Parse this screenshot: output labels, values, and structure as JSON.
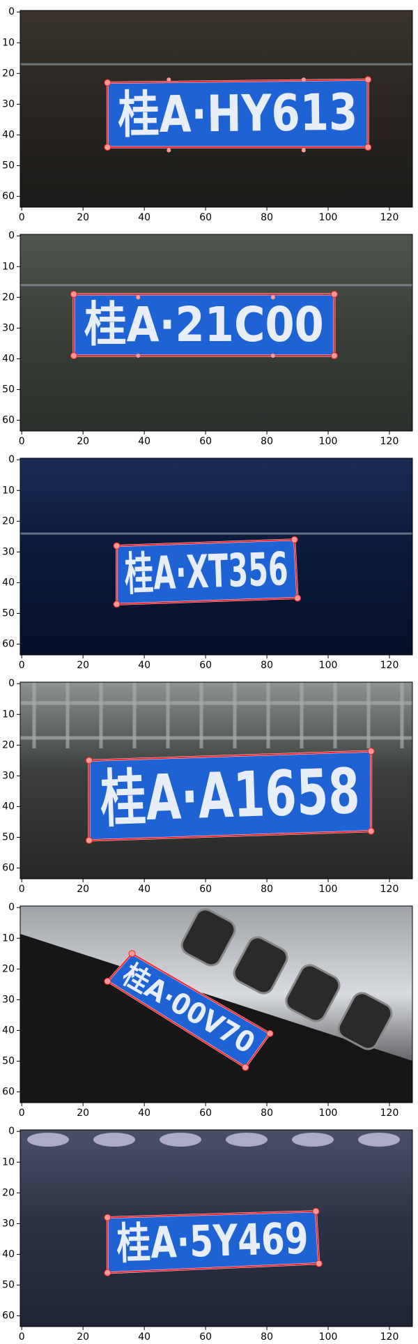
{
  "figure": {
    "x_ticks": [
      "0",
      "20",
      "40",
      "60",
      "80",
      "100",
      "120"
    ],
    "y_ticks": [
      "0",
      "10",
      "20",
      "30",
      "40",
      "50",
      "60"
    ],
    "colors": {
      "plate_blue": "#1f62d4",
      "annotation_red": "#ff2020",
      "corner_marker": "#ff9a9a",
      "axis": "#000000"
    },
    "panels": [
      {
        "plate_text": "桂A·HY613",
        "scene": "dark-road",
        "corners": [
          [
            28,
            23
          ],
          [
            113,
            22
          ],
          [
            113,
            44
          ],
          [
            28,
            44
          ]
        ],
        "mid_markers": [
          [
            48,
            22
          ],
          [
            92,
            22
          ],
          [
            48,
            45
          ],
          [
            92,
            45
          ]
        ]
      },
      {
        "plate_text": "桂A·21C00",
        "scene": "dark-bumper",
        "corners": [
          [
            17,
            19
          ],
          [
            102,
            19
          ],
          [
            102,
            39
          ],
          [
            17,
            39
          ]
        ],
        "mid_markers": [
          [
            38,
            20
          ],
          [
            82,
            20
          ],
          [
            38,
            39
          ],
          [
            82,
            39
          ]
        ]
      },
      {
        "plate_text": "桂A·XT356",
        "scene": "navy-car",
        "corners": [
          [
            31,
            28
          ],
          [
            89,
            26
          ],
          [
            90,
            45
          ],
          [
            31,
            47
          ]
        ],
        "mid_markers": []
      },
      {
        "plate_text": "桂A·A1658",
        "scene": "grille",
        "corners": [
          [
            22,
            25
          ],
          [
            114,
            22
          ],
          [
            114,
            48
          ],
          [
            22,
            51
          ]
        ],
        "mid_markers": []
      },
      {
        "plate_text": "桂A·00V70",
        "scene": "angled-jeep",
        "corners": [
          [
            36,
            15
          ],
          [
            81,
            41
          ],
          [
            73,
            52
          ],
          [
            28,
            24
          ]
        ],
        "mid_markers": []
      },
      {
        "plate_text": "桂A·5Y469",
        "scene": "blurry",
        "corners": [
          [
            28,
            28
          ],
          [
            96,
            26
          ],
          [
            97,
            43
          ],
          [
            28,
            46
          ]
        ],
        "mid_markers": []
      }
    ]
  }
}
